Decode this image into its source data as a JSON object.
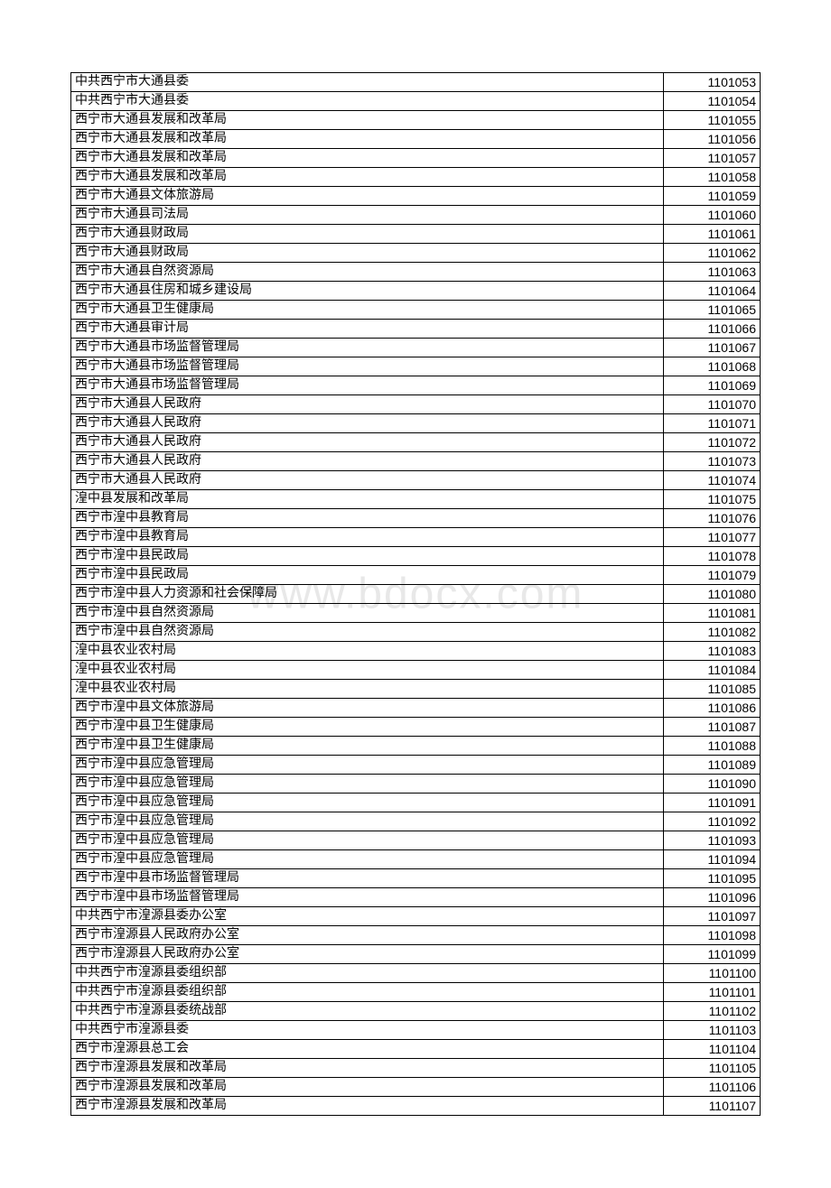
{
  "watermark": "www.bdocx.com",
  "table": {
    "rows": [
      {
        "name": "中共西宁市大通县委",
        "code": "1101053"
      },
      {
        "name": "中共西宁市大通县委",
        "code": "1101054"
      },
      {
        "name": "西宁市大通县发展和改革局",
        "code": "1101055"
      },
      {
        "name": "西宁市大通县发展和改革局",
        "code": "1101056"
      },
      {
        "name": "西宁市大通县发展和改革局",
        "code": "1101057"
      },
      {
        "name": "西宁市大通县发展和改革局",
        "code": "1101058"
      },
      {
        "name": "西宁市大通县文体旅游局",
        "code": "1101059"
      },
      {
        "name": "西宁市大通县司法局",
        "code": "1101060"
      },
      {
        "name": "西宁市大通县财政局",
        "code": "1101061"
      },
      {
        "name": "西宁市大通县财政局",
        "code": "1101062"
      },
      {
        "name": "西宁市大通县自然资源局",
        "code": "1101063"
      },
      {
        "name": "西宁市大通县住房和城乡建设局",
        "code": "1101064"
      },
      {
        "name": "西宁市大通县卫生健康局",
        "code": "1101065"
      },
      {
        "name": "西宁市大通县审计局",
        "code": "1101066"
      },
      {
        "name": "西宁市大通县市场监督管理局",
        "code": "1101067"
      },
      {
        "name": "西宁市大通县市场监督管理局",
        "code": "1101068"
      },
      {
        "name": "西宁市大通县市场监督管理局",
        "code": "1101069"
      },
      {
        "name": "西宁市大通县人民政府",
        "code": "1101070"
      },
      {
        "name": "西宁市大通县人民政府",
        "code": "1101071"
      },
      {
        "name": "西宁市大通县人民政府",
        "code": "1101072"
      },
      {
        "name": "西宁市大通县人民政府",
        "code": "1101073"
      },
      {
        "name": "西宁市大通县人民政府",
        "code": "1101074"
      },
      {
        "name": "湟中县发展和改革局",
        "code": "1101075"
      },
      {
        "name": "西宁市湟中县教育局",
        "code": "1101076"
      },
      {
        "name": "西宁市湟中县教育局",
        "code": "1101077"
      },
      {
        "name": "西宁市湟中县民政局",
        "code": "1101078"
      },
      {
        "name": "西宁市湟中县民政局",
        "code": "1101079"
      },
      {
        "name": "西宁市湟中县人力资源和社会保障局",
        "code": "1101080"
      },
      {
        "name": "西宁市湟中县自然资源局",
        "code": "1101081"
      },
      {
        "name": "西宁市湟中县自然资源局",
        "code": "1101082"
      },
      {
        "name": "湟中县农业农村局",
        "code": "1101083"
      },
      {
        "name": "湟中县农业农村局",
        "code": "1101084"
      },
      {
        "name": "湟中县农业农村局",
        "code": "1101085"
      },
      {
        "name": "西宁市湟中县文体旅游局",
        "code": "1101086"
      },
      {
        "name": "西宁市湟中县卫生健康局",
        "code": "1101087"
      },
      {
        "name": "西宁市湟中县卫生健康局",
        "code": "1101088"
      },
      {
        "name": "西宁市湟中县应急管理局",
        "code": "1101089"
      },
      {
        "name": "西宁市湟中县应急管理局",
        "code": "1101090"
      },
      {
        "name": "西宁市湟中县应急管理局",
        "code": "1101091"
      },
      {
        "name": "西宁市湟中县应急管理局",
        "code": "1101092"
      },
      {
        "name": "西宁市湟中县应急管理局",
        "code": "1101093"
      },
      {
        "name": "西宁市湟中县应急管理局",
        "code": "1101094"
      },
      {
        "name": "西宁市湟中县市场监督管理局",
        "code": "1101095"
      },
      {
        "name": "西宁市湟中县市场监督管理局",
        "code": "1101096"
      },
      {
        "name": "中共西宁市湟源县委办公室",
        "code": "1101097"
      },
      {
        "name": "西宁市湟源县人民政府办公室",
        "code": "1101098"
      },
      {
        "name": "西宁市湟源县人民政府办公室",
        "code": "1101099"
      },
      {
        "name": "中共西宁市湟源县委组织部",
        "code": "1101100"
      },
      {
        "name": "中共西宁市湟源县委组织部",
        "code": "1101101"
      },
      {
        "name": "中共西宁市湟源县委统战部",
        "code": "1101102"
      },
      {
        "name": "中共西宁市湟源县委",
        "code": "1101103"
      },
      {
        "name": "西宁市湟源县总工会",
        "code": "1101104"
      },
      {
        "name": "西宁市湟源县发展和改革局",
        "code": "1101105"
      },
      {
        "name": "西宁市湟源县发展和改革局",
        "code": "1101106"
      },
      {
        "name": "西宁市湟源县发展和改革局",
        "code": "1101107"
      }
    ]
  }
}
